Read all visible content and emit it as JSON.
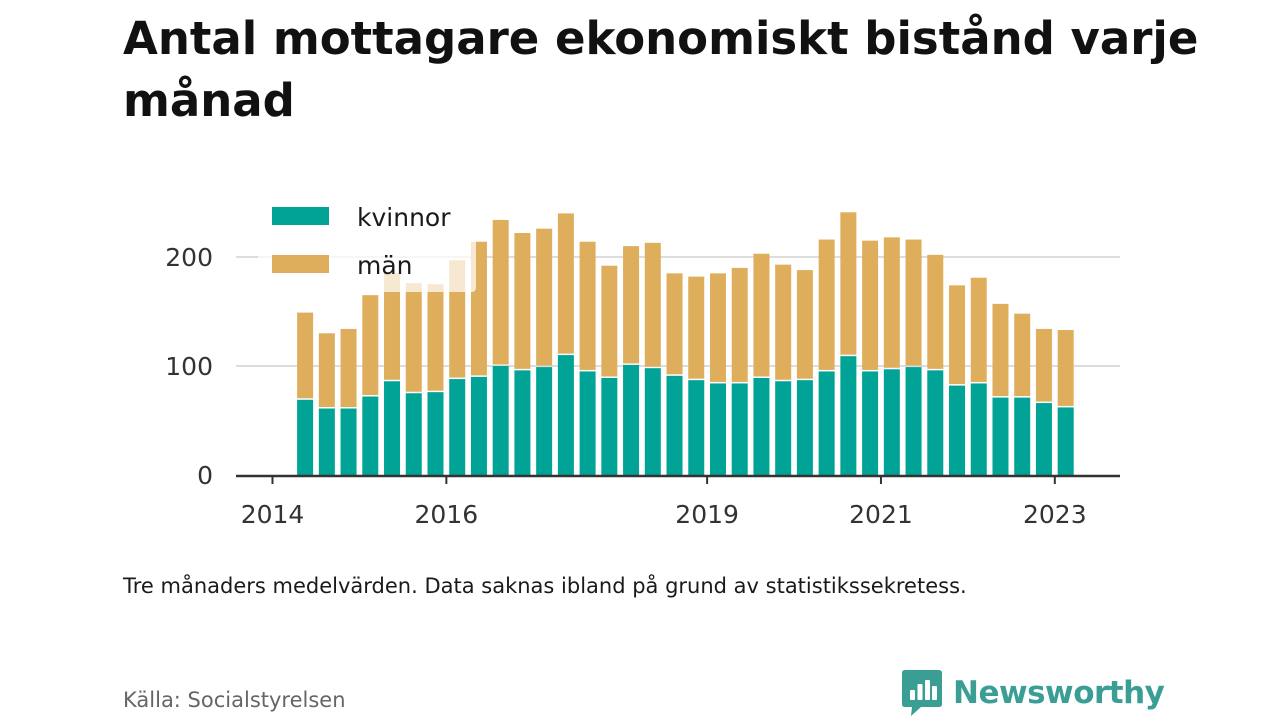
{
  "title": "Antal mottagare ekonomiskt bistånd varje månad",
  "note": "Tre månaders medelvärden. Data saknas ibland på grund av statistikssekretess.",
  "source": "Källa: Socialstyrelsen",
  "brand": {
    "name": "Newsworthy",
    "icon": "newsworthy-logo-icon",
    "color": "#3a9e95"
  },
  "colors": {
    "kvinnor": "#00a396",
    "man": "#dfae5c",
    "grid": "#dddddd",
    "axis": "#333333"
  },
  "chart_data": {
    "type": "bar",
    "stacked": true,
    "xlabel": "",
    "ylabel": "",
    "ylim": [
      0,
      250
    ],
    "y_ticks": [
      0,
      100,
      200
    ],
    "x_ticks": [
      "2014",
      "2016",
      "2019",
      "2021",
      "2023"
    ],
    "x_tick_positions": [
      2014.0,
      2016.0,
      2019.0,
      2021.0,
      2023.0
    ],
    "x_range": [
      2013.58,
      2023.75
    ],
    "legend_position": "top-left",
    "x": [
      2014.375,
      2014.625,
      2014.875,
      2015.125,
      2015.375,
      2015.625,
      2015.875,
      2016.125,
      2016.375,
      2016.625,
      2016.875,
      2017.125,
      2017.375,
      2017.625,
      2017.875,
      2018.125,
      2018.375,
      2018.625,
      2018.875,
      2019.125,
      2019.375,
      2019.625,
      2019.875,
      2020.125,
      2020.375,
      2020.625,
      2020.875,
      2021.125,
      2021.375,
      2021.625,
      2021.875,
      2022.125,
      2022.375,
      2022.625,
      2022.875,
      2023.125
    ],
    "series": [
      {
        "name": "kvinnor",
        "values": [
          69,
          61,
          61,
          72,
          86,
          75,
          76,
          88,
          90,
          100,
          96,
          99,
          110,
          95,
          89,
          101,
          98,
          91,
          87,
          84,
          84,
          89,
          86,
          87,
          95,
          109,
          95,
          97,
          99,
          96,
          82,
          84,
          71,
          71,
          66,
          62
        ]
      },
      {
        "name": "män",
        "values": [
          80,
          69,
          73,
          93,
          99,
          101,
          99,
          109,
          124,
          134,
          126,
          127,
          130,
          119,
          103,
          109,
          115,
          94,
          95,
          101,
          106,
          114,
          107,
          101,
          121,
          132,
          120,
          121,
          117,
          106,
          92,
          97,
          86,
          77,
          68,
          71
        ]
      }
    ]
  }
}
